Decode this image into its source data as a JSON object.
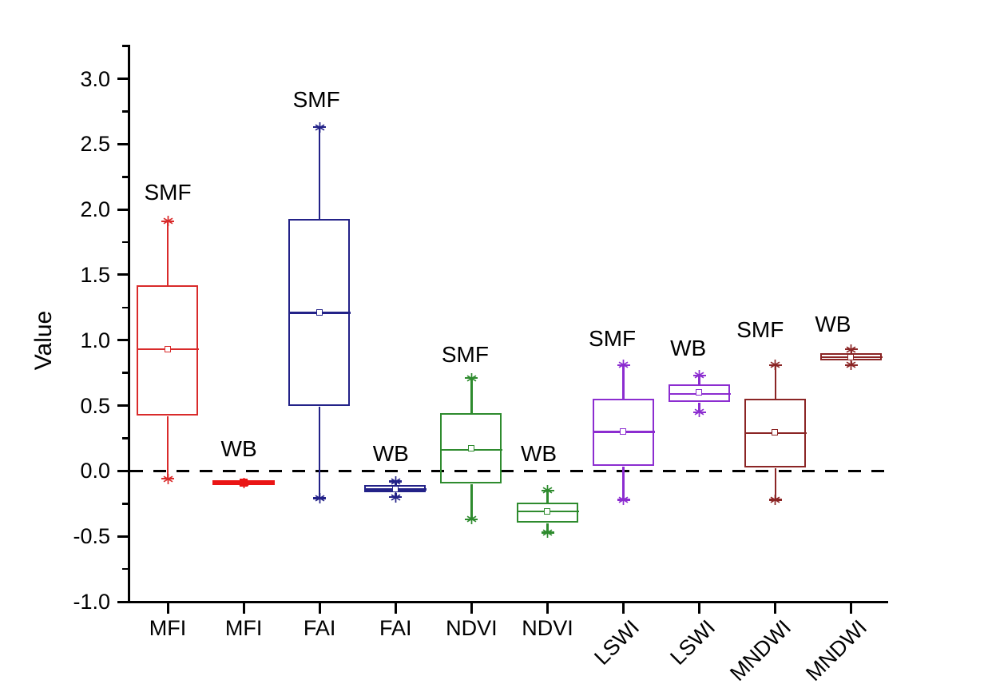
{
  "figure_background": "#ffffff",
  "chart_data": {
    "type": "box",
    "title": "",
    "ylabel": "Value",
    "xlabel": "",
    "ylim": [
      -1.0,
      3.26
    ],
    "grid": false,
    "legend": "none",
    "zero_reference_line": {
      "y": 0.0,
      "style": "dashed",
      "color": "#000000"
    },
    "y_major_ticks": [
      {
        "value": 3.0,
        "label": "3.0"
      },
      {
        "value": 2.5,
        "label": "2.5"
      },
      {
        "value": 2.0,
        "label": "2.0"
      },
      {
        "value": 1.5,
        "label": "1.5"
      },
      {
        "value": 1.0,
        "label": "1.0"
      },
      {
        "value": 0.5,
        "label": "0.5"
      },
      {
        "value": 0.0,
        "label": "0.0"
      },
      {
        "value": -0.5,
        "label": "-0.5"
      },
      {
        "value": -1.0,
        "label": "-1.0"
      }
    ],
    "y_minor_ticks": [
      -0.75,
      -0.25,
      0.25,
      0.75,
      1.25,
      1.75,
      2.25,
      2.75,
      3.25
    ],
    "categories": [
      "MFI",
      "MFI",
      "FAI",
      "FAI",
      "NDVI",
      "NDVI",
      "LSWI",
      "LSWI",
      "MNDWI",
      "MNDWI"
    ],
    "x_label_rotation_deg": [
      0,
      0,
      0,
      0,
      0,
      0,
      -45,
      -45,
      -45,
      -45
    ],
    "boxes": [
      {
        "category": "MFI",
        "group": "SMF",
        "color": "#d92b2b",
        "style": "box",
        "q1": 0.42,
        "median": 0.93,
        "q3": 1.42,
        "mean": 0.93,
        "whisker_low": -0.06,
        "whisker_high": 1.91,
        "annotation": "SMF",
        "ann_y": 2.13,
        "ann_dx": 0
      },
      {
        "category": "MFI",
        "group": "WB",
        "color": "#ea1515",
        "style": "filled-bar",
        "q1": -0.11,
        "median": -0.09,
        "q3": -0.07,
        "mean": -0.09,
        "whisker_low": -0.09,
        "whisker_high": -0.09,
        "annotation": "WB",
        "ann_y": 0.17,
        "ann_dx": -6
      },
      {
        "category": "FAI",
        "group": "SMF",
        "color": "#232288",
        "style": "box",
        "q1": 0.49,
        "median": 1.21,
        "q3": 1.93,
        "mean": 1.21,
        "whisker_low": -0.21,
        "whisker_high": 2.63,
        "annotation": "SMF",
        "ann_y": 2.84,
        "ann_dx": -4
      },
      {
        "category": "FAI",
        "group": "WB",
        "color": "#232288",
        "style": "box",
        "q1": -0.17,
        "median": -0.14,
        "q3": -0.11,
        "mean": -0.14,
        "whisker_low": -0.2,
        "whisker_high": -0.08,
        "annotation": "WB",
        "ann_y": 0.13,
        "ann_dx": -6
      },
      {
        "category": "NDVI",
        "group": "SMF",
        "color": "#2e8b2e",
        "style": "box",
        "q1": -0.1,
        "median": 0.16,
        "q3": 0.44,
        "mean": 0.17,
        "whisker_low": -0.37,
        "whisker_high": 0.71,
        "annotation": "SMF",
        "ann_y": 0.89,
        "ann_dx": -8
      },
      {
        "category": "NDVI",
        "group": "WB",
        "color": "#2e8b2e",
        "style": "box",
        "q1": -0.4,
        "median": -0.31,
        "q3": -0.24,
        "mean": -0.31,
        "whisker_low": -0.47,
        "whisker_high": -0.15,
        "annotation": "WB",
        "ann_y": 0.13,
        "ann_dx": -11
      },
      {
        "category": "LSWI",
        "group": "SMF",
        "color": "#8c2dd0",
        "style": "box",
        "q1": 0.03,
        "median": 0.3,
        "q3": 0.55,
        "mean": 0.3,
        "whisker_low": -0.22,
        "whisker_high": 0.81,
        "annotation": "SMF",
        "ann_y": 1.01,
        "ann_dx": -14
      },
      {
        "category": "LSWI",
        "group": "WB",
        "color": "#8c2dd0",
        "style": "box",
        "q1": 0.52,
        "median": 0.59,
        "q3": 0.66,
        "mean": 0.6,
        "whisker_low": 0.45,
        "whisker_high": 0.73,
        "annotation": "WB",
        "ann_y": 0.94,
        "ann_dx": -14
      },
      {
        "category": "MNDWI",
        "group": "SMF",
        "color": "#8b2525",
        "style": "box",
        "q1": 0.02,
        "median": 0.29,
        "q3": 0.55,
        "mean": 0.29,
        "whisker_low": -0.22,
        "whisker_high": 0.81,
        "annotation": "SMF",
        "ann_y": 1.08,
        "ann_dx": -19
      },
      {
        "category": "MNDWI",
        "group": "WB",
        "color": "#8b2525",
        "style": "box",
        "q1": 0.84,
        "median": 0.87,
        "q3": 0.9,
        "mean": 0.87,
        "whisker_low": 0.81,
        "whisker_high": 0.93,
        "annotation": "WB",
        "ann_y": 1.12,
        "ann_dx": -23
      }
    ]
  }
}
